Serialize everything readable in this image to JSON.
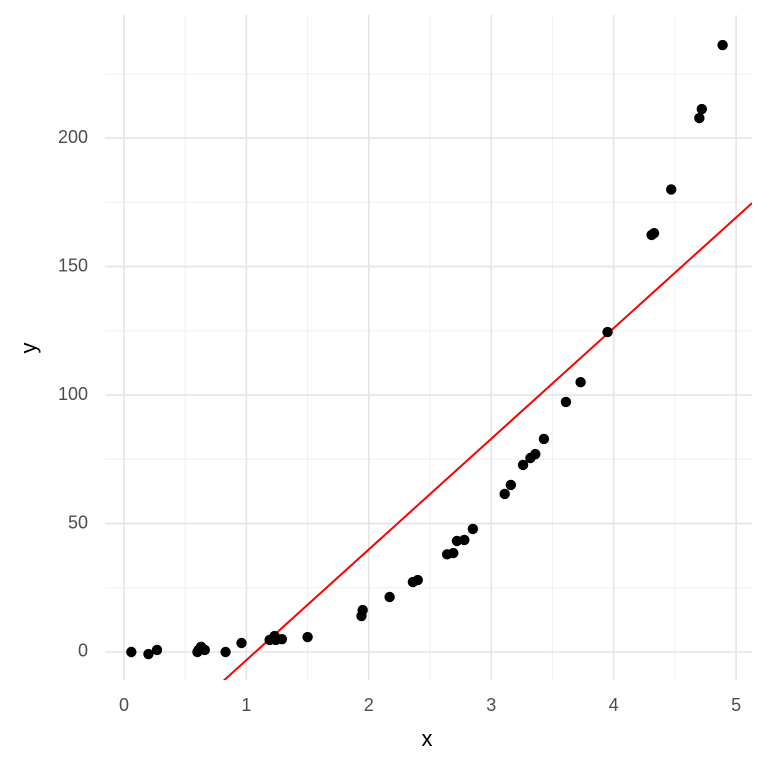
{
  "chart_data": {
    "type": "scatter",
    "x_label": "x",
    "y_label": "y",
    "xlim": [
      -0.155,
      5.13
    ],
    "ylim": [
      -10.9,
      247.9
    ],
    "xticks": [
      0,
      1,
      2,
      3,
      4,
      5
    ],
    "yticks": [
      0,
      50,
      100,
      150,
      200
    ],
    "xminor": [
      0.5,
      1.5,
      2.5,
      3.5,
      4.5
    ],
    "yminor": [
      25,
      75,
      125,
      175,
      225
    ],
    "grid": true,
    "series": [
      {
        "color": "#000000",
        "x": [
          0.06,
          0.2,
          0.27,
          0.6,
          0.61,
          0.63,
          0.66,
          0.83,
          0.96,
          1.19,
          1.23,
          1.24,
          1.29,
          1.5,
          1.94,
          1.95,
          2.17,
          2.36,
          2.4,
          2.64,
          2.69,
          2.72,
          2.78,
          2.85,
          3.11,
          3.16,
          3.26,
          3.32,
          3.36,
          3.43,
          3.61,
          3.73,
          3.95,
          4.31,
          4.33,
          4.47,
          4.7,
          4.72,
          4.89
        ],
        "values": [
          0,
          -0.8,
          0.8,
          0,
          0.8,
          2,
          0.8,
          0,
          3.5,
          4.7,
          6.2,
          4.7,
          5,
          5.8,
          14,
          16.3,
          21.4,
          27.2,
          28,
          38,
          38.5,
          43.2,
          43.6,
          47.9,
          61.5,
          65,
          72.8,
          75.5,
          77,
          82.9,
          97.3,
          105,
          124.5,
          162.3,
          163,
          180,
          207.8,
          211.3,
          236.2
        ]
      }
    ],
    "fit": {
      "color": "#ff0000",
      "x": [
        0.776,
        5.13
      ],
      "values": [
        -12.8,
        174.7
      ]
    }
  }
}
